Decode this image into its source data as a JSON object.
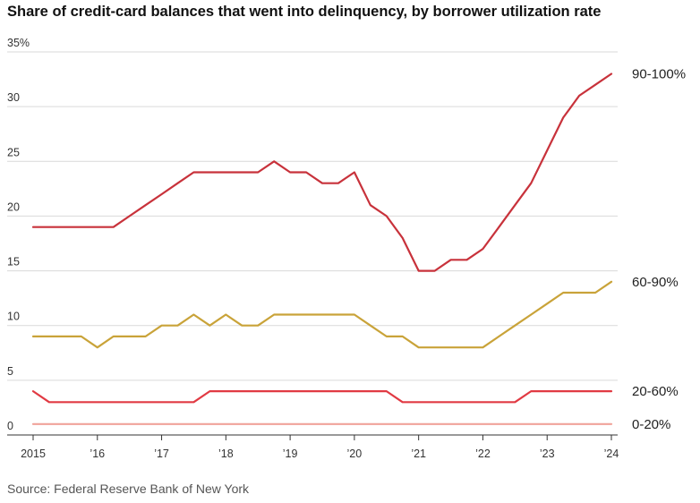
{
  "chart_data": {
    "type": "line",
    "title": "Share of credit-card balances that went into delinquency, by borrower utilization rate",
    "source": "Source: Federal Reserve Bank of New York",
    "xlabel": "",
    "ylabel": "",
    "xlim": [
      2015.0,
      2024.0
    ],
    "ylim": [
      0,
      35
    ],
    "y_ticks": [
      {
        "value": 0,
        "label": "0"
      },
      {
        "value": 5,
        "label": "5"
      },
      {
        "value": 10,
        "label": "10"
      },
      {
        "value": 15,
        "label": "15"
      },
      {
        "value": 20,
        "label": "20"
      },
      {
        "value": 25,
        "label": "25"
      },
      {
        "value": 30,
        "label": "30"
      },
      {
        "value": 35,
        "label": "35%"
      }
    ],
    "x_ticks": [
      {
        "value": 2015,
        "label": "2015"
      },
      {
        "value": 2016,
        "label": "’16"
      },
      {
        "value": 2017,
        "label": "’17"
      },
      {
        "value": 2018,
        "label": "’18"
      },
      {
        "value": 2019,
        "label": "’19"
      },
      {
        "value": 2020,
        "label": "’20"
      },
      {
        "value": 2021,
        "label": "’21"
      },
      {
        "value": 2022,
        "label": "’22"
      },
      {
        "value": 2023,
        "label": "’23"
      },
      {
        "value": 2024,
        "label": "’24"
      }
    ],
    "grid": true,
    "series": [
      {
        "name": "90-100%",
        "color": "#c8323b",
        "points": [
          [
            2015.0,
            19
          ],
          [
            2015.25,
            19
          ],
          [
            2015.5,
            19
          ],
          [
            2015.75,
            19
          ],
          [
            2016.0,
            19
          ],
          [
            2016.25,
            19
          ],
          [
            2016.5,
            20
          ],
          [
            2016.75,
            21
          ],
          [
            2017.0,
            22
          ],
          [
            2017.25,
            23
          ],
          [
            2017.5,
            24
          ],
          [
            2017.75,
            24
          ],
          [
            2018.0,
            24
          ],
          [
            2018.25,
            24
          ],
          [
            2018.5,
            24
          ],
          [
            2018.75,
            25
          ],
          [
            2019.0,
            24
          ],
          [
            2019.25,
            24
          ],
          [
            2019.5,
            23
          ],
          [
            2019.75,
            23
          ],
          [
            2020.0,
            24
          ],
          [
            2020.25,
            21
          ],
          [
            2020.5,
            20
          ],
          [
            2020.75,
            18
          ],
          [
            2021.0,
            15
          ],
          [
            2021.25,
            15
          ],
          [
            2021.5,
            16
          ],
          [
            2021.75,
            16
          ],
          [
            2022.0,
            17
          ],
          [
            2022.25,
            19
          ],
          [
            2022.5,
            21
          ],
          [
            2022.75,
            23
          ],
          [
            2023.0,
            26
          ],
          [
            2023.25,
            29
          ],
          [
            2023.5,
            31
          ],
          [
            2023.75,
            32
          ],
          [
            2024.0,
            33
          ]
        ]
      },
      {
        "name": "60-90%",
        "color": "#c9a339",
        "points": [
          [
            2015.0,
            9
          ],
          [
            2015.25,
            9
          ],
          [
            2015.5,
            9
          ],
          [
            2015.75,
            9
          ],
          [
            2016.0,
            8
          ],
          [
            2016.25,
            9
          ],
          [
            2016.5,
            9
          ],
          [
            2016.75,
            9
          ],
          [
            2017.0,
            10
          ],
          [
            2017.25,
            10
          ],
          [
            2017.5,
            11
          ],
          [
            2017.75,
            10
          ],
          [
            2018.0,
            11
          ],
          [
            2018.25,
            10
          ],
          [
            2018.5,
            10
          ],
          [
            2018.75,
            11
          ],
          [
            2019.0,
            11
          ],
          [
            2019.25,
            11
          ],
          [
            2019.5,
            11
          ],
          [
            2019.75,
            11
          ],
          [
            2020.0,
            11
          ],
          [
            2020.25,
            10
          ],
          [
            2020.5,
            9
          ],
          [
            2020.75,
            9
          ],
          [
            2021.0,
            8
          ],
          [
            2021.25,
            8
          ],
          [
            2021.5,
            8
          ],
          [
            2021.75,
            8
          ],
          [
            2022.0,
            8
          ],
          [
            2022.25,
            9
          ],
          [
            2022.5,
            10
          ],
          [
            2022.75,
            11
          ],
          [
            2023.0,
            12
          ],
          [
            2023.25,
            13
          ],
          [
            2023.5,
            13
          ],
          [
            2023.75,
            13
          ],
          [
            2024.0,
            14
          ]
        ]
      },
      {
        "name": "20-60%",
        "color": "#e13a43",
        "points": [
          [
            2015.0,
            4
          ],
          [
            2015.25,
            3
          ],
          [
            2015.5,
            3
          ],
          [
            2015.75,
            3
          ],
          [
            2016.0,
            3
          ],
          [
            2016.25,
            3
          ],
          [
            2016.5,
            3
          ],
          [
            2016.75,
            3
          ],
          [
            2017.0,
            3
          ],
          [
            2017.25,
            3
          ],
          [
            2017.5,
            3
          ],
          [
            2017.75,
            4
          ],
          [
            2018.0,
            4
          ],
          [
            2018.25,
            4
          ],
          [
            2018.5,
            4
          ],
          [
            2018.75,
            4
          ],
          [
            2019.0,
            4
          ],
          [
            2019.25,
            4
          ],
          [
            2019.5,
            4
          ],
          [
            2019.75,
            4
          ],
          [
            2020.0,
            4
          ],
          [
            2020.25,
            4
          ],
          [
            2020.5,
            4
          ],
          [
            2020.75,
            3
          ],
          [
            2021.0,
            3
          ],
          [
            2021.25,
            3
          ],
          [
            2021.5,
            3
          ],
          [
            2021.75,
            3
          ],
          [
            2022.0,
            3
          ],
          [
            2022.25,
            3
          ],
          [
            2022.5,
            3
          ],
          [
            2022.75,
            4
          ],
          [
            2023.0,
            4
          ],
          [
            2023.25,
            4
          ],
          [
            2023.5,
            4
          ],
          [
            2023.75,
            4
          ],
          [
            2024.0,
            4
          ]
        ]
      },
      {
        "name": "0-20%",
        "color": "#f0a39a",
        "points": [
          [
            2015.0,
            1
          ],
          [
            2016.0,
            1
          ],
          [
            2017.0,
            1
          ],
          [
            2018.0,
            1
          ],
          [
            2019.0,
            1
          ],
          [
            2020.0,
            1
          ],
          [
            2021.0,
            1
          ],
          [
            2022.0,
            1
          ],
          [
            2023.0,
            1
          ],
          [
            2024.0,
            1
          ]
        ]
      }
    ]
  }
}
